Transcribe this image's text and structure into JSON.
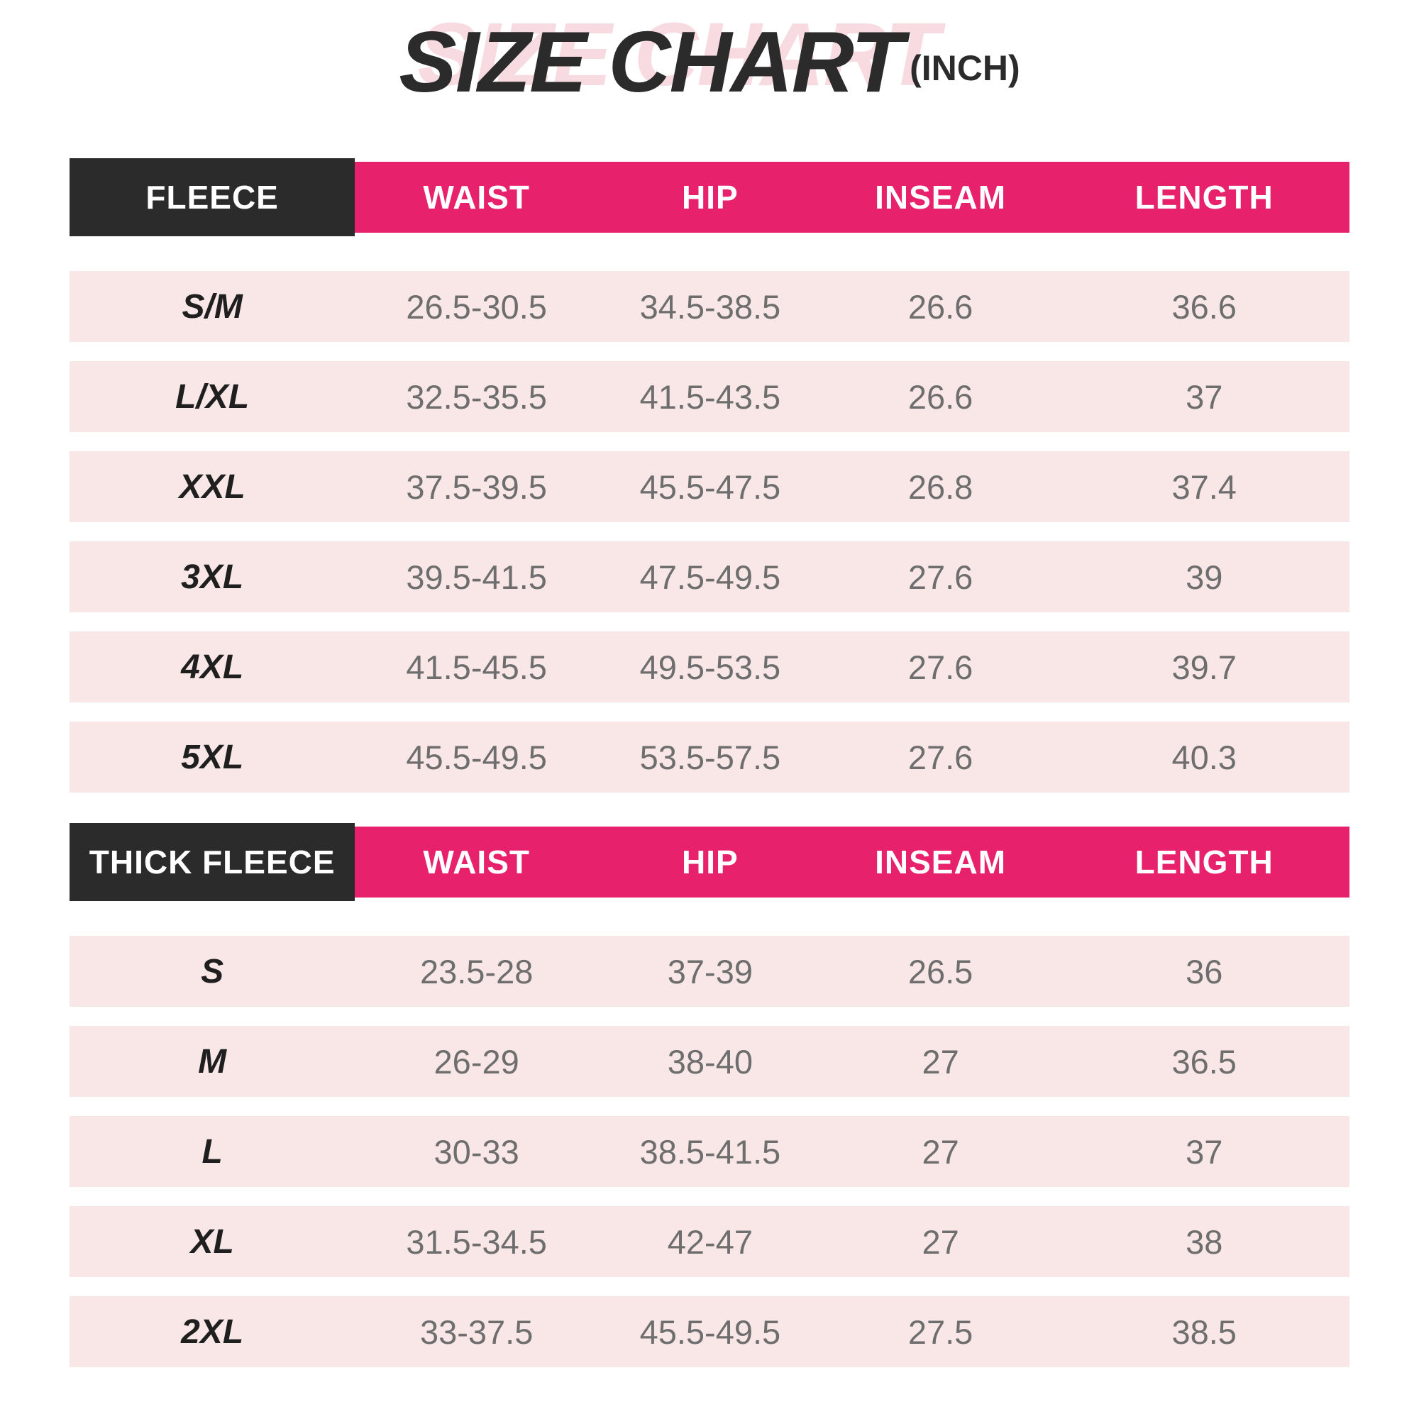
{
  "title": {
    "text": "SIZE CHART",
    "unit": "(INCH)"
  },
  "colors": {
    "accent_pink": "#E7216B",
    "header_dark": "#2B2B2B",
    "row_pink": "#F9E7E7",
    "title_ghost_pink": "#F7DBE1",
    "value_gray": "#6E6E6E"
  },
  "chart_data": [
    {
      "type": "table",
      "title": "SIZE CHART (INCH)",
      "label": "FLEECE",
      "columns": [
        "FLEECE",
        "WAIST",
        "HIP",
        "INSEAM",
        "LENGTH"
      ],
      "rows": [
        [
          "S/M",
          "26.5-30.5",
          "34.5-38.5",
          "26.6",
          "36.6"
        ],
        [
          "L/XL",
          "32.5-35.5",
          "41.5-43.5",
          "26.6",
          "37"
        ],
        [
          "XXL",
          "37.5-39.5",
          "45.5-47.5",
          "26.8",
          "37.4"
        ],
        [
          "3XL",
          "39.5-41.5",
          "47.5-49.5",
          "27.6",
          "39"
        ],
        [
          "4XL",
          "41.5-45.5",
          "49.5-53.5",
          "27.6",
          "39.7"
        ],
        [
          "5XL",
          "45.5-49.5",
          "53.5-57.5",
          "27.6",
          "40.3"
        ]
      ]
    },
    {
      "type": "table",
      "title": "SIZE CHART (INCH)",
      "label": "THICK FLEECE",
      "columns": [
        "THICK FLEECE",
        "WAIST",
        "HIP",
        "INSEAM",
        "LENGTH"
      ],
      "rows": [
        [
          "S",
          "23.5-28",
          "37-39",
          "26.5",
          "36"
        ],
        [
          "M",
          "26-29",
          "38-40",
          "27",
          "36.5"
        ],
        [
          "L",
          "30-33",
          "38.5-41.5",
          "27",
          "37"
        ],
        [
          "XL",
          "31.5-34.5",
          "42-47",
          "27",
          "38"
        ],
        [
          "2XL",
          "33-37.5",
          "45.5-49.5",
          "27.5",
          "38.5"
        ]
      ]
    }
  ]
}
